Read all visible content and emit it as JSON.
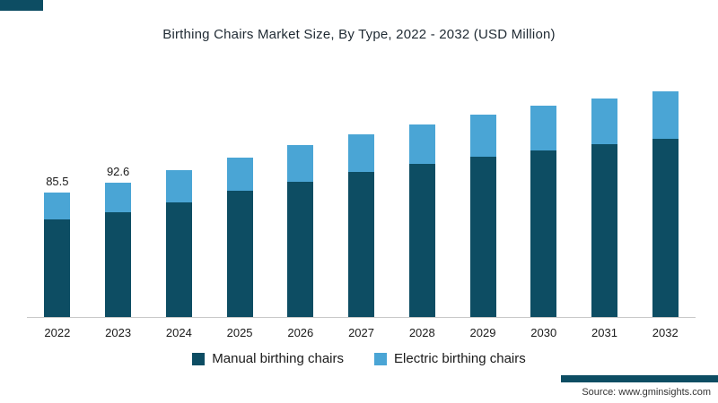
{
  "title": "Birthing Chairs Market Size, By Type, 2022 - 2032 (USD Million)",
  "source": "Source:  www.gminsights.com",
  "accent_color": "#0d4d63",
  "chart_data": {
    "type": "bar",
    "stacked": true,
    "title": "Birthing Chairs Market Size, By Type, 2022 - 2032 (USD Million)",
    "xlabel": "",
    "ylabel": "",
    "ylim": [
      0,
      160
    ],
    "grid": false,
    "legend_position": "bottom",
    "categories": [
      "2022",
      "2023",
      "2024",
      "2025",
      "2026",
      "2027",
      "2028",
      "2029",
      "2030",
      "2031",
      "2032"
    ],
    "series": [
      {
        "name": "Manual birthing chairs",
        "color": "#0d4d63",
        "values": [
          67,
          72,
          79,
          86.5,
          93,
          99.5,
          105,
          110,
          114.5,
          118.5,
          122.5
        ]
      },
      {
        "name": "Electric birthing chairs",
        "color": "#4aa5d5",
        "values": [
          18.5,
          20.6,
          22,
          23,
          25,
          26,
          27.5,
          29,
          30.5,
          31.5,
          32.5
        ]
      }
    ],
    "totals": [
      85.5,
      92.6,
      101,
      109.5,
      118,
      125.5,
      132.5,
      139,
      145,
      150,
      155
    ],
    "total_labels": [
      "85.5",
      "92.6",
      "",
      "",
      "",
      "",
      "",
      "",
      "",
      "",
      ""
    ]
  }
}
